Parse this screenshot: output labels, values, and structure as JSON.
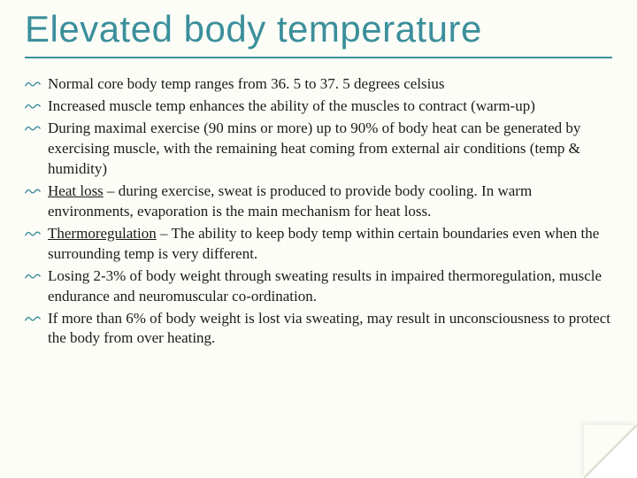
{
  "slide": {
    "title": "Elevated body temperature",
    "title_color": "#3b8f9b",
    "title_fontsize": 42,
    "underline_color": "#3b8f9b",
    "background_color": "#fdfdf8",
    "body_fontsize": 17,
    "body_color": "#1a1a1a",
    "bullet_icon_color": "#3b8f9b",
    "bullets": [
      {
        "html": "Normal core body temp ranges from 36. 5 to 37. 5 degrees celsius"
      },
      {
        "html": "Increased muscle temp enhances the ability of the muscles to contract (warm-up)"
      },
      {
        "html": "During maximal exercise (90 mins or more) up to 90% of body heat can be generated by exercising muscle, with the remaining heat coming from external air conditions (temp & humidity)"
      },
      {
        "html": "<span class=\"underline\">Heat loss</span> – during exercise, sweat is produced to provide body cooling. In warm environments, evaporation is the main mechanism for heat loss."
      },
      {
        "html": "<span class=\"underline\">Thermoregulation</span> – The ability to keep body temp within certain boundaries even when the surrounding temp is very different."
      },
      {
        "html": "Losing 2-3% of body weight through sweating results in impaired thermoregulation, muscle endurance and neuromuscular co-ordination."
      },
      {
        "html": "If more than 6% of body weight is lost via sweating, may result in unconsciousness to protect the body from over heating."
      }
    ]
  }
}
